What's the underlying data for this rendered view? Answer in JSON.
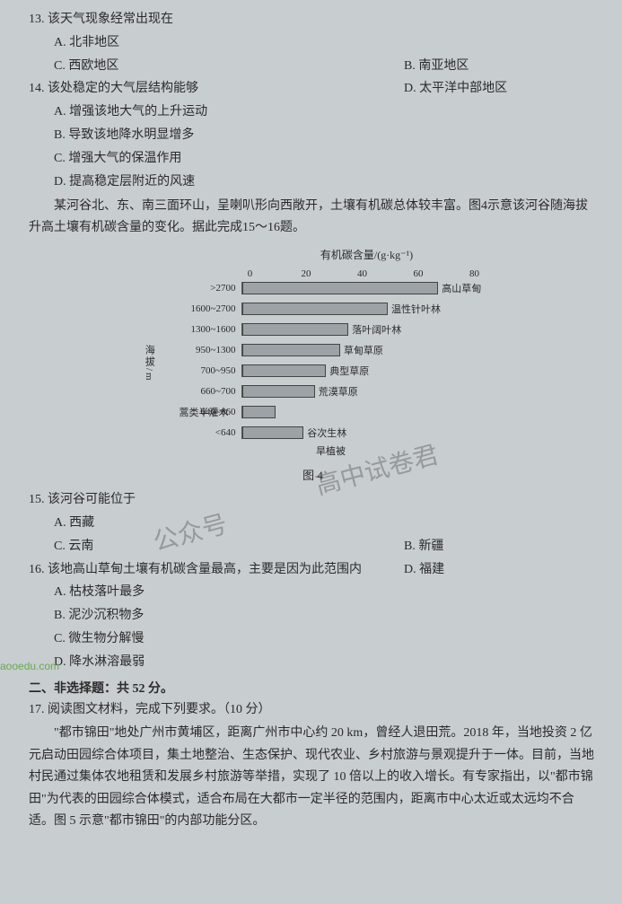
{
  "q13": {
    "stem": "13. 该天气现象经常出现在",
    "a": "A. 北非地区",
    "b": "B. 南亚地区",
    "c": "C. 西欧地区",
    "d": "D. 太平洋中部地区"
  },
  "q14": {
    "stem": "14. 该处稳定的大气层结构能够",
    "a": "A. 增强该地大气的上升运动",
    "b": "B. 导致该地降水明显增多",
    "c": "C. 增强大气的保温作用",
    "d": "D. 提高稳定层附近的风速"
  },
  "passage1": "某河谷北、东、南三面环山，呈喇叭形向西敞开，土壤有机碳总体较丰富。图4示意该河谷随海拔升高土壤有机碳含量的变化。据此完成15～16题。",
  "chart": {
    "type": "bar",
    "title": "有机碳含量/(g·kg⁻¹)",
    "xlim": [
      0,
      80
    ],
    "xticks": [
      0,
      20,
      40,
      60,
      80
    ],
    "y_axis_label": "海拔/m",
    "bar_color": "#9ca2a6",
    "bar_border": "#444444",
    "background": "#c8cdd0",
    "label_fontsize": 11,
    "rows": [
      {
        "cat": ">2700",
        "value": 70,
        "label": "高山草甸"
      },
      {
        "cat": "1600~2700",
        "value": 52,
        "label": "温性针叶林"
      },
      {
        "cat": "1300~1600",
        "value": 38,
        "label": "落叶阔叶林"
      },
      {
        "cat": "950~1300",
        "value": 35,
        "label": "草甸草原"
      },
      {
        "cat": "700~950",
        "value": 30,
        "label": "典型草原"
      },
      {
        "cat": "660~700",
        "value": 26,
        "label": "荒漠草原"
      },
      {
        "cat": "640~660",
        "value": 12,
        "label": "蒿类半灌木",
        "label_left": true
      },
      {
        "cat": "<640",
        "value": 22,
        "label": "谷次生林"
      }
    ],
    "bottom_note": "旱植被",
    "caption": "图 4"
  },
  "q15": {
    "stem": "15. 该河谷可能位于",
    "a": "A. 西藏",
    "b": "B. 新疆",
    "c": "C. 云南",
    "d": "D. 福建"
  },
  "q16": {
    "stem": "16. 该地高山草甸土壤有机碳含量最高，主要是因为此范围内",
    "a": "A. 枯枝落叶最多",
    "b": "B. 泥沙沉积物多",
    "c": "C. 微生物分解慢",
    "d": "D. 降水淋溶最弱"
  },
  "section2": "二、非选择题：共 52 分。",
  "q17": {
    "stem": "17. 阅读图文材料，完成下列要求。（10 分）",
    "body": "\"都市锦田\"地处广州市黄埔区，距离广州市中心约 20 km，曾经人退田荒。2018 年，当地投资 2 亿元启动田园综合体项目，集土地整治、生态保护、现代农业、乡村旅游与景观提升于一体。目前，当地村民通过集体农地租赁和发展乡村旅游等举措，实现了 10 倍以上的收入增长。有专家指出，以\"都市锦田\"为代表的田园综合体模式，适合布局在大都市一定半径的范围内，距离市中心太近或太远均不合适。图 5 示意\"都市锦田\"的内部功能分区。"
  },
  "watermarks": {
    "left": "公众号",
    "right": "高中试卷君"
  },
  "site": "aooedu.com"
}
